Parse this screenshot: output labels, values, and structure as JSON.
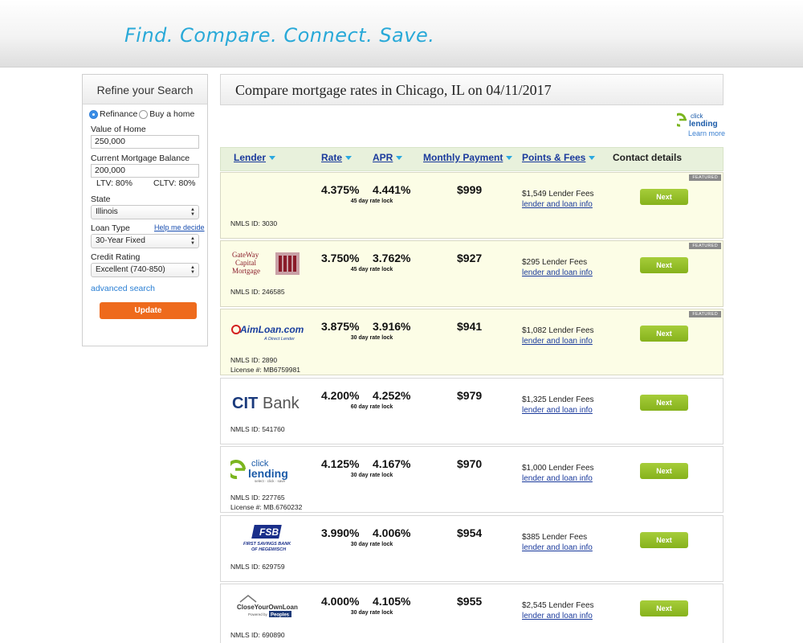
{
  "banner": {
    "tagline": "Find. Compare. Connect. Save."
  },
  "sidebar": {
    "title": "Refine your Search",
    "loan_purpose": {
      "options": [
        "Refinance",
        "Buy a home"
      ],
      "selected": "Refinance"
    },
    "value_of_home": {
      "label": "Value of Home",
      "value": "250,000"
    },
    "mortgage_balance": {
      "label": "Current Mortgage Balance",
      "value": "200,000"
    },
    "ltv": "LTV: 80%",
    "cltv": "CLTV: 80%",
    "state": {
      "label": "State",
      "value": "Illinois"
    },
    "loan_type": {
      "label": "Loan Type",
      "value": "30-Year Fixed",
      "help": "Help me decide"
    },
    "credit_rating": {
      "label": "Credit Rating",
      "value": "Excellent (740-850)"
    },
    "advanced_search": "advanced search",
    "update_button": "Update"
  },
  "main": {
    "title": "Compare mortgage rates in Chicago, IL on 04/11/2017",
    "learn_more": "Learn more",
    "columns": {
      "lender": "Lender",
      "rate": "Rate",
      "apr": "APR",
      "monthly_payment": "Monthly Payment",
      "points_fees": "Points & Fees",
      "contact": "Contact details"
    },
    "featured_badge": "FEATURED",
    "next_label": "Next",
    "info_link": "lender and loan info",
    "rows": [
      {
        "logo": "",
        "featured": true,
        "rate": "4.375%",
        "apr": "4.441%",
        "lock": "45 day rate lock",
        "payment": "$999",
        "fees": "$1,549 Lender Fees",
        "nmls": "NMLS ID: 3030",
        "license": ""
      },
      {
        "logo": "gateway-capital-mortgage",
        "featured": true,
        "rate": "3.750%",
        "apr": "3.762%",
        "lock": "45 day rate lock",
        "payment": "$927",
        "fees": "$295 Lender Fees",
        "nmls": "NMLS ID: 246585",
        "license": ""
      },
      {
        "logo": "aimloan",
        "featured": true,
        "rate": "3.875%",
        "apr": "3.916%",
        "lock": "30 day rate lock",
        "payment": "$941",
        "fees": "$1,082 Lender Fees",
        "nmls": "NMLS ID: 2890",
        "license": "License #: MB6759981"
      },
      {
        "logo": "citbank",
        "featured": false,
        "rate": "4.200%",
        "apr": "4.252%",
        "lock": "60 day rate lock",
        "payment": "$979",
        "fees": "$1,325 Lender Fees",
        "nmls": "NMLS ID: 541760",
        "license": ""
      },
      {
        "logo": "eclick-lending",
        "featured": false,
        "rate": "4.125%",
        "apr": "4.167%",
        "lock": "30 day rate lock",
        "payment": "$970",
        "fees": "$1,000 Lender Fees",
        "nmls": "NMLS ID: 227765",
        "license": "License #: MB.6760232"
      },
      {
        "logo": "first-savings-bank-hegewisch",
        "featured": false,
        "rate": "3.990%",
        "apr": "4.006%",
        "lock": "30 day rate lock",
        "payment": "$954",
        "fees": "$385 Lender Fees",
        "nmls": "NMLS ID: 629759",
        "license": ""
      },
      {
        "logo": "close-your-own-loan",
        "featured": false,
        "rate": "4.000%",
        "apr": "4.105%",
        "lock": "30 day rate lock",
        "payment": "$955",
        "fees": "$2,545 Lender Fees",
        "nmls": "NMLS ID: 690890",
        "license": ""
      }
    ]
  },
  "logos": {
    "gateway": [
      "GateWay",
      "Capital",
      "Mortgage"
    ],
    "aimloan": [
      "AimLoan.com",
      "A Direct Lender"
    ],
    "citbank": [
      "CIT",
      "Bank"
    ],
    "eclick": [
      "click",
      "lending",
      "select · click · save"
    ],
    "fsb": [
      "FSB",
      "FIRST SAVINGS BANK",
      "OF HEGEWISCH"
    ],
    "cyol": [
      "CloseYourOwnLoan",
      "Powered by",
      "Peoples"
    ]
  }
}
